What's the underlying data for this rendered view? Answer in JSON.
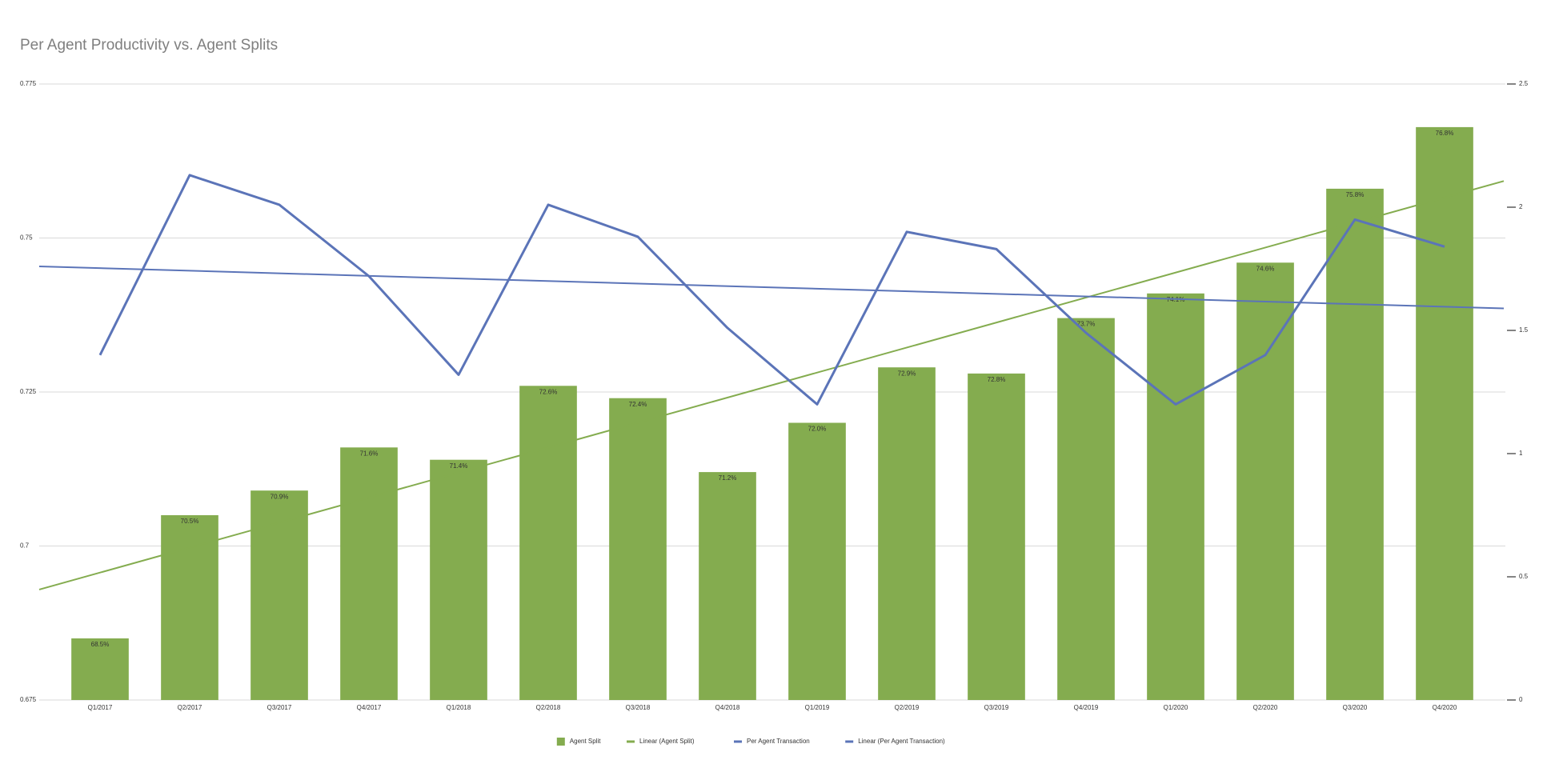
{
  "chart_data": {
    "type": "bar",
    "title": "Per Agent Productivity vs. Agent Splits",
    "categories": [
      "Q1/2017",
      "Q2/2017",
      "Q3/2017",
      "Q4/2017",
      "Q1/2018",
      "Q2/2018",
      "Q3/2018",
      "Q4/2018",
      "Q1/2019",
      "Q2/2019",
      "Q3/2019",
      "Q4/2019",
      "Q1/2020",
      "Q2/2020",
      "Q3/2020",
      "Q4/2020"
    ],
    "series": [
      {
        "name": "Agent Split",
        "type": "bar",
        "color": "#84ac4f",
        "values": [
          0.685,
          0.705,
          0.709,
          0.716,
          0.714,
          0.726,
          0.724,
          0.712,
          0.72,
          0.729,
          0.728,
          0.737,
          0.741,
          0.746,
          0.758,
          0.768
        ],
        "value_labels": [
          "68.5%",
          "70.5%",
          "70.9%",
          "71.6%",
          "71.4%",
          "72.6%",
          "72.4%",
          "71.2%",
          "72.0%",
          "72.9%",
          "72.8%",
          "73.7%",
          "74.1%",
          "74.6%",
          "75.8%",
          "76.8%"
        ]
      },
      {
        "name": "Linear (Agent Split)",
        "type": "trendline",
        "trend_of": 0,
        "color": "#84ac4f"
      },
      {
        "name": "Per Agent Transaction",
        "type": "line",
        "axis": "y2",
        "color": "#5b74b8",
        "values": [
          1.4,
          2.13,
          2.01,
          1.72,
          1.32,
          2.01,
          1.88,
          1.51,
          1.2,
          1.9,
          1.83,
          1.49,
          1.2,
          1.4,
          1.95,
          1.84
        ]
      },
      {
        "name": "Linear (Per Agent Transaction)",
        "type": "trendline",
        "trend_of": 2,
        "color": "#5b74b8"
      }
    ],
    "ylim": [
      0.675,
      0.775
    ],
    "yticks": [
      0.675,
      0.7,
      0.725,
      0.75,
      0.775
    ],
    "y2lim": [
      0,
      2.5
    ],
    "y2ticks": [
      0,
      0.5,
      1,
      1.5,
      2,
      2.5
    ],
    "grid": true,
    "legend": "bottom"
  }
}
